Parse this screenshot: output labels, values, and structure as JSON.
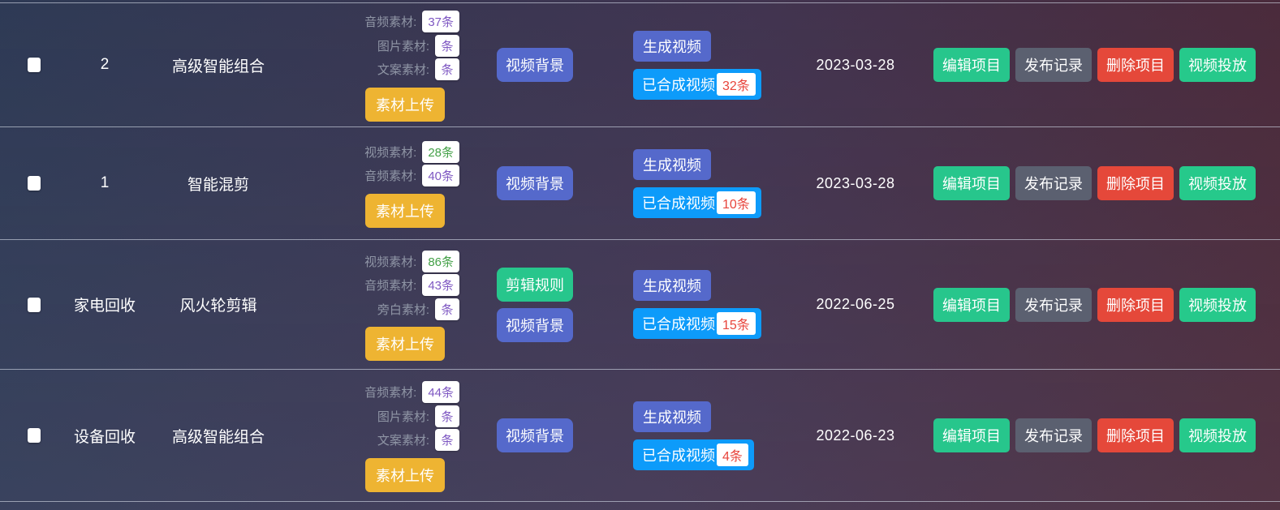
{
  "colors": {
    "bg-left": "#2e3a55",
    "bg-mid": "#413450",
    "bg-right": "#4c2938",
    "divider": "rgba(205,210,225,0.65)",
    "label-gray": "#8f95a5",
    "amber": "#eeb432",
    "indigo": "#5569cb",
    "green": "#27c68c",
    "blue": "#0d9bfa",
    "gray": "#5b6070",
    "red": "#e5483a",
    "teal": "#26c98b",
    "badge-purple": "#7e57c2",
    "badge-green": "#43a047",
    "badge-red": "#e8453c"
  },
  "action_buttons": [
    {
      "label": "编辑项目",
      "style": "green",
      "name": "edit-project-button"
    },
    {
      "label": "发布记录",
      "style": "gray",
      "name": "publish-record-button"
    },
    {
      "label": "删除项目",
      "style": "red",
      "name": "delete-project-button"
    },
    {
      "label": "视频投放",
      "style": "teal",
      "name": "video-launch-button"
    }
  ],
  "rows": [
    {
      "name": "2",
      "type": "高级智能组合",
      "materials": [
        {
          "label": "音频素材:",
          "count": "37条",
          "color": "purple"
        },
        {
          "label": "图片素材:",
          "count": "条",
          "color": "purple"
        },
        {
          "label": "文案素材:",
          "count": "条",
          "color": "purple"
        }
      ],
      "upload_label": "素材上传",
      "rule_buttons": [
        {
          "label": "视频背景",
          "style": "indigo",
          "name": "video-background-button"
        }
      ],
      "generate_label": "生成视频",
      "synth_label": "已合成视频",
      "synth_count": "32条",
      "date": "2023-03-28"
    },
    {
      "name": "1",
      "type": "智能混剪",
      "materials": [
        {
          "label": "视频素材:",
          "count": "28条",
          "color": "green"
        },
        {
          "label": "音频素材:",
          "count": "40条",
          "color": "purple"
        }
      ],
      "upload_label": "素材上传",
      "rule_buttons": [
        {
          "label": "视频背景",
          "style": "indigo",
          "name": "video-background-button"
        }
      ],
      "generate_label": "生成视频",
      "synth_label": "已合成视频",
      "synth_count": "10条",
      "date": "2023-03-28"
    },
    {
      "name": "家电回收",
      "type": "风火轮剪辑",
      "materials": [
        {
          "label": "视频素材:",
          "count": "86条",
          "color": "green"
        },
        {
          "label": "音频素材:",
          "count": "43条",
          "color": "purple"
        },
        {
          "label": "旁白素材:",
          "count": "条",
          "color": "purple"
        }
      ],
      "upload_label": "素材上传",
      "rule_buttons": [
        {
          "label": "剪辑规则",
          "style": "green",
          "name": "edit-rule-button"
        },
        {
          "label": "视频背景",
          "style": "indigo",
          "name": "video-background-button"
        }
      ],
      "generate_label": "生成视频",
      "synth_label": "已合成视频",
      "synth_count": "15条",
      "date": "2022-06-25"
    },
    {
      "name": "设备回收",
      "type": "高级智能组合",
      "materials": [
        {
          "label": "音频素材:",
          "count": "44条",
          "color": "purple"
        },
        {
          "label": "图片素材:",
          "count": "条",
          "color": "purple"
        },
        {
          "label": "文案素材:",
          "count": "条",
          "color": "purple"
        }
      ],
      "upload_label": "素材上传",
      "rule_buttons": [
        {
          "label": "视频背景",
          "style": "indigo",
          "name": "video-background-button"
        }
      ],
      "generate_label": "生成视频",
      "synth_label": "已合成视频",
      "synth_count": "4条",
      "date": "2022-06-23"
    }
  ]
}
